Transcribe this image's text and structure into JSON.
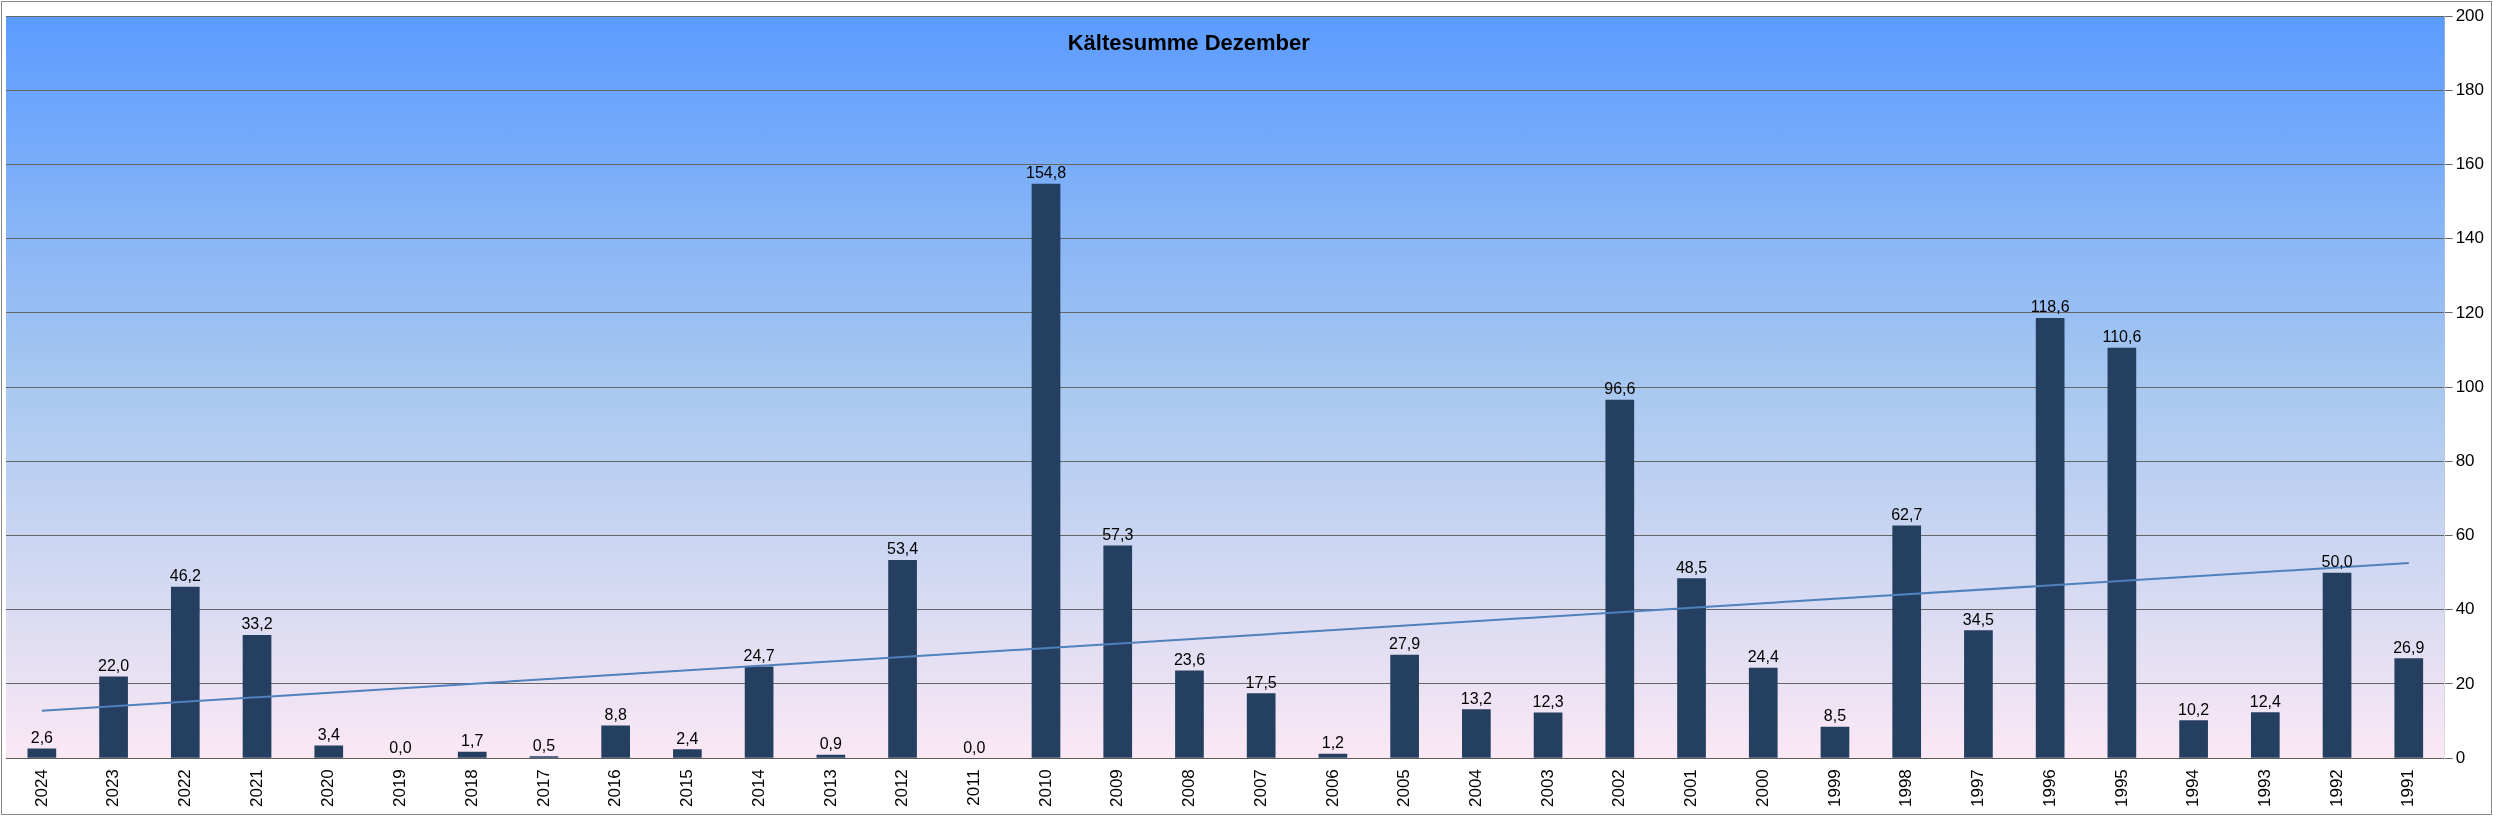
{
  "chart_data": {
    "type": "bar",
    "title": "Kältesumme Dezember",
    "categories": [
      "2024",
      "2023",
      "2022",
      "2021",
      "2020",
      "2019",
      "2018",
      "2017",
      "2016",
      "2015",
      "2014",
      "2013",
      "2012",
      "2011",
      "2010",
      "2009",
      "2008",
      "2007",
      "2006",
      "2005",
      "2004",
      "2003",
      "2002",
      "2001",
      "2000",
      "1999",
      "1998",
      "1997",
      "1996",
      "1995",
      "1994",
      "1993",
      "1992",
      "1991"
    ],
    "series": [
      {
        "color": "#243f60",
        "values": [
          2.6,
          22.0,
          46.2,
          33.2,
          3.4,
          0.0,
          1.7,
          0.5,
          8.8,
          2.4,
          24.7,
          0.9,
          53.4,
          0.0,
          154.8,
          57.3,
          23.6,
          17.5,
          1.2,
          27.9,
          13.2,
          12.3,
          96.6,
          48.5,
          24.4,
          8.5,
          62.7,
          34.5,
          118.6,
          110.6,
          10.2,
          12.4,
          50.0,
          26.9
        ],
        "value_labels": [
          "2,6",
          "22,0",
          "46,2",
          "33,2",
          "3,4",
          "0,0",
          "1,7",
          "0,5",
          "8,8",
          "2,4",
          "24,7",
          "0,9",
          "53,4",
          "0,0",
          "154,8",
          "57,3",
          "23,6",
          "17,5",
          "1,2",
          "27,9",
          "13,2",
          "12,3",
          "96,6",
          "48,5",
          "24,4",
          "8,5",
          "62,7",
          "34,5",
          "118,6",
          "110,6",
          "10,2",
          "12,4",
          "50,0",
          "26,9"
        ]
      },
      {
        "type": "line",
        "color": "#4f81bd",
        "values": [
          12.8,
          null,
          null,
          null,
          null,
          null,
          null,
          null,
          null,
          null,
          null,
          null,
          null,
          null,
          null,
          null,
          null,
          null,
          null,
          null,
          null,
          null,
          null,
          null,
          null,
          null,
          null,
          null,
          null,
          null,
          null,
          null,
          null,
          52.6
        ]
      }
    ],
    "ylim": [
      0,
      200
    ],
    "yticks": [
      0,
      20,
      40,
      60,
      80,
      100,
      120,
      140,
      160,
      180,
      200
    ],
    "grid": "y",
    "legend": false
  }
}
